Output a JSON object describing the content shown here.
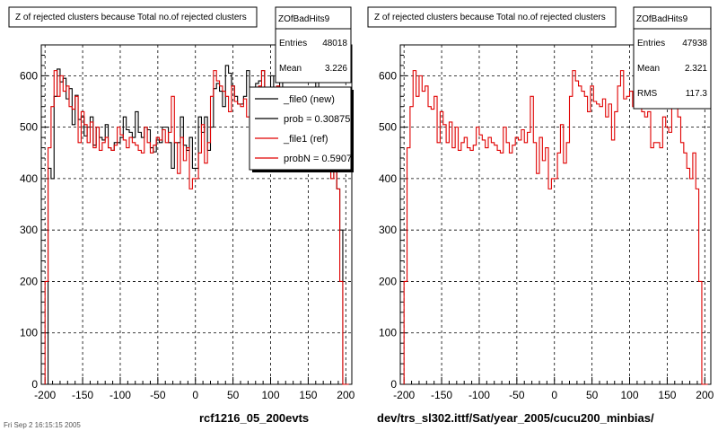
{
  "footer": "Fri Sep 2 16:15:15 2005",
  "chart_data": [
    {
      "type": "histogram",
      "title": "Z of rejected clusters  because Total no.of rejected clusters",
      "xlabel": "rcf1216_05_200evts",
      "ylabel": "",
      "xlim": [
        -205,
        208
      ],
      "ylim": [
        0,
        660
      ],
      "xticks": [
        -200,
        -150,
        -100,
        -50,
        0,
        50,
        100,
        150,
        200
      ],
      "yticks": [
        0,
        100,
        200,
        300,
        400,
        500,
        600
      ],
      "grid": true,
      "stats": {
        "name": "ZOfBadHits9",
        "rows": [
          {
            "label": "Entries",
            "value": "48018"
          },
          {
            "label": "Mean",
            "value": "3.226"
          }
        ]
      },
      "legend": {
        "position": "right-overlap",
        "entries": [
          {
            "label": "_file0 (new)",
            "color": "#000000"
          },
          {
            "label": "prob = 0.308750",
            "color": "#000000"
          },
          {
            "label": "_file1 (ref)",
            "color": "#e00000"
          },
          {
            "label": "probN = 0.590750",
            "color": "#e00000"
          }
        ]
      },
      "series": [
        {
          "name": "_file0 (new)",
          "color": "#000000",
          "x_start": -200,
          "bin_width": 4,
          "values": [
            0,
            420,
            400,
            560,
            613,
            588,
            595,
            555,
            575,
            505,
            562,
            515,
            520,
            483,
            500,
            520,
            465,
            500,
            480,
            475,
            505,
            460,
            455,
            470,
            470,
            480,
            520,
            495,
            490,
            480,
            530,
            490,
            480,
            500,
            495,
            460,
            452,
            475,
            470,
            500,
            500,
            470,
            420,
            470,
            470,
            520,
            465,
            455,
            480,
            420,
            420,
            520,
            490,
            520,
            455,
            500,
            575,
            585,
            570,
            540,
            620,
            605,
            580,
            560,
            545,
            545,
            560,
            610,
            555,
            530,
            585,
            590,
            610,
            555,
            560,
            600,
            540,
            550,
            600,
            570,
            545,
            540,
            480,
            470,
            470,
            460,
            530,
            470,
            500,
            520,
            600,
            550,
            460,
            440,
            560,
            400,
            480,
            380,
            300,
            0,
            0
          ]
        },
        {
          "name": "_file1 (ref)",
          "color": "#e00000",
          "x_start": -200,
          "bin_width": 4,
          "values": [
            200,
            460,
            540,
            610,
            560,
            600,
            570,
            580,
            540,
            535,
            560,
            470,
            530,
            505,
            470,
            510,
            460,
            500,
            455,
            470,
            480,
            460,
            455,
            465,
            500,
            485,
            475,
            460,
            480,
            470,
            465,
            455,
            450,
            500,
            470,
            450,
            465,
            480,
            475,
            495,
            470,
            490,
            560,
            470,
            410,
            480,
            435,
            460,
            380,
            400,
            400,
            450,
            505,
            430,
            470,
            560,
            610,
            590,
            580,
            570,
            560,
            530,
            580,
            550,
            545,
            540,
            555,
            520,
            545,
            475,
            530,
            580,
            610,
            555,
            560,
            570,
            540,
            580,
            555,
            530,
            520,
            530,
            460,
            470,
            470,
            460,
            520,
            500,
            490,
            545,
            550,
            520,
            470,
            450,
            420,
            400,
            450,
            380,
            200,
            0,
            0
          ]
        }
      ]
    },
    {
      "type": "histogram",
      "title": "Z of rejected clusters  because Total no.of rejected clusters",
      "xlabel": "dev/trs_sl302.ittf/Sat/year_2005/cucu200_minbias/",
      "ylabel": "",
      "xlim": [
        -205,
        208
      ],
      "ylim": [
        0,
        660
      ],
      "xticks": [
        -200,
        -150,
        -100,
        -50,
        0,
        50,
        100,
        150,
        200
      ],
      "yticks": [
        0,
        100,
        200,
        300,
        400,
        500,
        600
      ],
      "grid": true,
      "stats": {
        "name": "ZOfBadHits9",
        "rows": [
          {
            "label": "Entries",
            "value": "47938"
          },
          {
            "label": "Mean",
            "value": "2.321"
          },
          {
            "label": "RMS",
            "value": "117.3"
          }
        ]
      },
      "series": [
        {
          "name": "",
          "color": "#e00000",
          "x_start": -200,
          "bin_width": 4,
          "values": [
            200,
            460,
            540,
            610,
            560,
            600,
            570,
            580,
            540,
            535,
            560,
            470,
            530,
            505,
            470,
            510,
            460,
            500,
            455,
            470,
            480,
            460,
            455,
            465,
            500,
            485,
            475,
            460,
            480,
            470,
            465,
            455,
            450,
            500,
            470,
            450,
            465,
            480,
            475,
            495,
            470,
            490,
            560,
            470,
            410,
            480,
            435,
            460,
            380,
            400,
            400,
            450,
            505,
            430,
            470,
            560,
            610,
            590,
            580,
            570,
            560,
            530,
            580,
            550,
            545,
            540,
            555,
            520,
            545,
            475,
            530,
            580,
            610,
            555,
            560,
            570,
            540,
            580,
            555,
            530,
            520,
            530,
            460,
            470,
            470,
            460,
            520,
            500,
            490,
            545,
            550,
            520,
            470,
            450,
            420,
            400,
            450,
            380,
            200,
            0,
            0
          ]
        }
      ]
    }
  ]
}
